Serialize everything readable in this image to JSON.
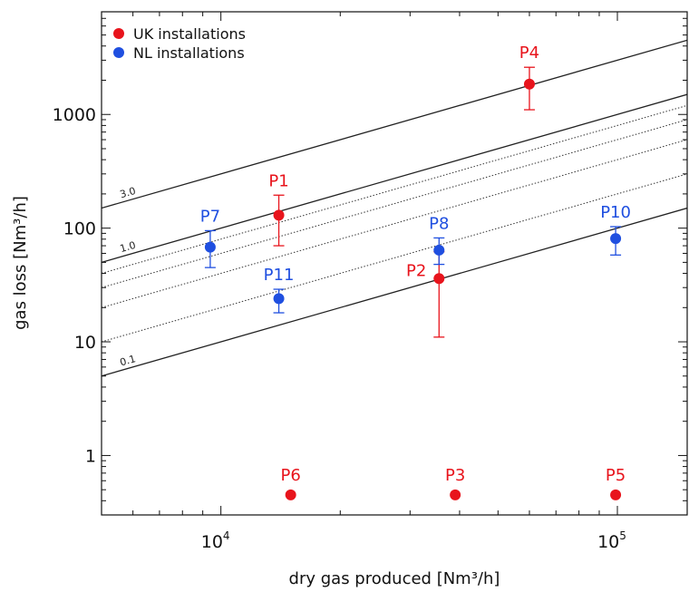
{
  "chart_data": {
    "type": "scatter",
    "xscale": "log",
    "yscale": "log",
    "xlabel": "dry gas produced [Nm³/h]",
    "ylabel": "gas loss [Nm³/h]",
    "xlim": [
      5000,
      150000
    ],
    "ylim": [
      0.3,
      8000
    ],
    "x_tick_labels": [
      {
        "value": 10000,
        "base": "10",
        "exp": "4"
      },
      {
        "value": 100000,
        "base": "10",
        "exp": "5"
      }
    ],
    "y_tick_labels": [
      {
        "value": 1,
        "label": "1"
      },
      {
        "value": 10,
        "label": "10"
      },
      {
        "value": 100,
        "label": "100"
      },
      {
        "value": 1000,
        "label": "1000"
      }
    ],
    "legend": {
      "placement": "top-left",
      "entries": [
        {
          "label": "UK installations",
          "color": "#e8141c"
        },
        {
          "label": "NL installations",
          "color": "#1f4fe0"
        }
      ]
    },
    "reference_lines": [
      {
        "ratio": 0.03,
        "label": "3.0",
        "style": "solid"
      },
      {
        "ratio": 0.01,
        "label": "1.0",
        "style": "solid"
      },
      {
        "ratio": 0.008,
        "label": "",
        "style": "dotted"
      },
      {
        "ratio": 0.006,
        "label": "",
        "style": "dotted"
      },
      {
        "ratio": 0.004,
        "label": "",
        "style": "dotted"
      },
      {
        "ratio": 0.002,
        "label": "",
        "style": "dotted"
      },
      {
        "ratio": 0.001,
        "label": "0.1",
        "style": "solid"
      }
    ],
    "series": [
      {
        "name": "UK installations",
        "color": "#e8141c",
        "points": [
          {
            "label": "P1",
            "x": 14000,
            "y": 130,
            "ylow": 70,
            "yhigh": 195,
            "label_pos": "above"
          },
          {
            "label": "P2",
            "x": 35500,
            "y": 36,
            "ylow": 11,
            "yhigh": 62,
            "label_pos": "left"
          },
          {
            "label": "P4",
            "x": 60000,
            "y": 1850,
            "ylow": 1100,
            "yhigh": 2600,
            "label_pos": "above"
          },
          {
            "label": "P6",
            "x": 15000,
            "y": 0.45,
            "label_pos": "above"
          },
          {
            "label": "P3",
            "x": 39000,
            "y": 0.45,
            "label_pos": "above"
          },
          {
            "label": "P5",
            "x": 99000,
            "y": 0.45,
            "label_pos": "above"
          }
        ]
      },
      {
        "name": "NL installations",
        "color": "#1f4fe0",
        "points": [
          {
            "label": "P7",
            "x": 9400,
            "y": 68,
            "ylow": 45,
            "yhigh": 95,
            "label_pos": "above"
          },
          {
            "label": "P11",
            "x": 14000,
            "y": 24,
            "ylow": 18,
            "yhigh": 29,
            "label_pos": "above"
          },
          {
            "label": "P8",
            "x": 35500,
            "y": 64,
            "ylow": 48,
            "yhigh": 82,
            "label_pos": "above"
          },
          {
            "label": "P10",
            "x": 99000,
            "y": 81,
            "ylow": 58,
            "yhigh": 103,
            "label_pos": "above"
          }
        ]
      }
    ],
    "grid": false
  }
}
